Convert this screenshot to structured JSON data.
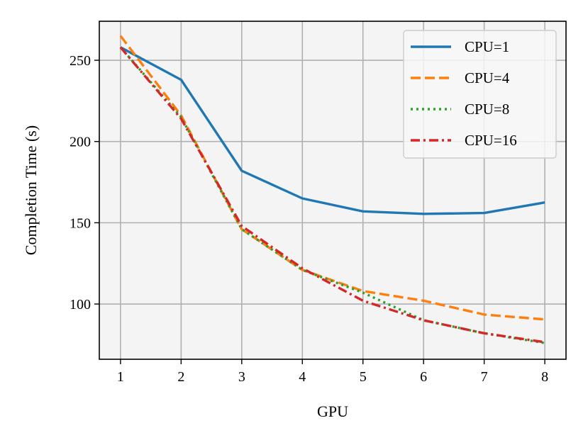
{
  "chart_data": {
    "type": "line",
    "title": "",
    "xlabel": "GPU",
    "ylabel": "Completion Time (s)",
    "x": [
      1,
      2,
      3,
      4,
      5,
      6,
      7,
      8
    ],
    "xlim": [
      0.65,
      8.35
    ],
    "ylim": [
      66,
      274
    ],
    "xticks": [
      1,
      2,
      3,
      4,
      5,
      6,
      7,
      8
    ],
    "yticks": [
      100,
      150,
      200,
      250
    ],
    "grid": true,
    "legend_position": "top-right",
    "series": [
      {
        "name": "CPU=1",
        "values": [
          258,
          238,
          182,
          165,
          157,
          155.5,
          156,
          162.5
        ],
        "color": "#1f77b4",
        "style": "solid"
      },
      {
        "name": "CPU=4",
        "values": [
          265,
          216,
          146,
          121,
          108,
          102,
          93.5,
          90.5
        ],
        "color": "#ff7f0e",
        "style": "dashed"
      },
      {
        "name": "CPU=8",
        "values": [
          258,
          215,
          146,
          121,
          107,
          90,
          82,
          76
        ],
        "color": "#2ca02c",
        "style": "dotted"
      },
      {
        "name": "CPU=16",
        "values": [
          258,
          214,
          148,
          122,
          102,
          90,
          82,
          76.5
        ],
        "color": "#d62728",
        "style": "dashdot"
      }
    ]
  }
}
